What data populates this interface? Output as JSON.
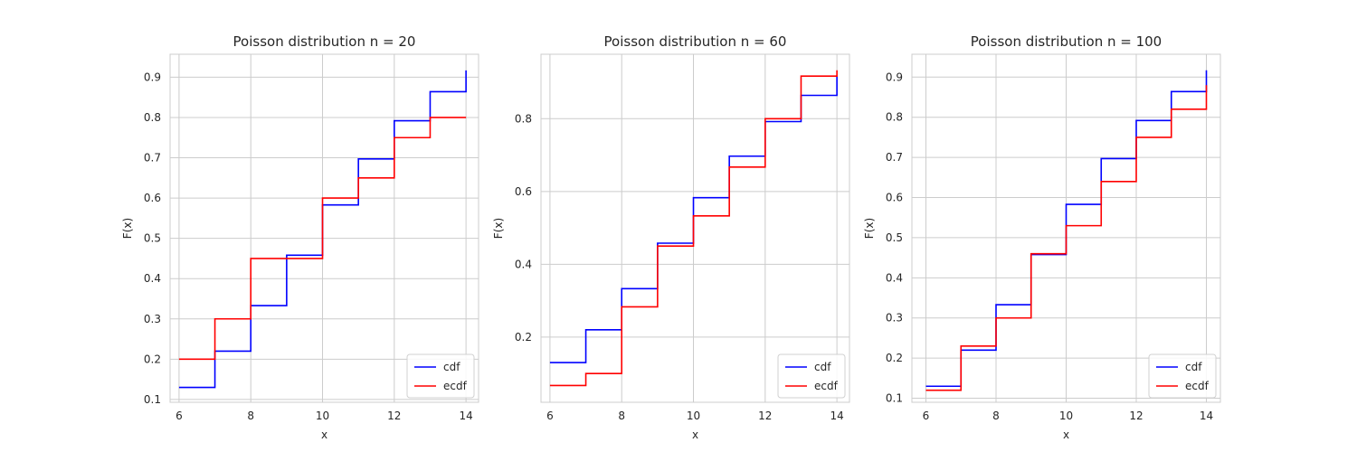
{
  "colors": {
    "cdf": "#0000ff",
    "ecdf": "#ff0000",
    "grid": "#cccccc",
    "frame": "#cccccc"
  },
  "chart_data": [
    {
      "type": "line",
      "step": "post",
      "title": "Poisson distribution n = 20",
      "xlabel": "x",
      "ylabel": "F(x)",
      "xlim": [
        5.75,
        14.35
      ],
      "ylim": [
        0.093,
        0.957
      ],
      "xticks": [
        6,
        8,
        10,
        12,
        14
      ],
      "yticks": [
        0.1,
        0.2,
        0.3,
        0.4,
        0.5,
        0.6,
        0.7,
        0.8,
        0.9
      ],
      "ytick_labels": [
        "0.1",
        "0.2",
        "0.3",
        "0.4",
        "0.5",
        "0.6",
        "0.7",
        "0.8",
        "0.9"
      ],
      "grid": true,
      "legend": "lower-right",
      "series": [
        {
          "name": "cdf",
          "x": [
            6,
            7,
            8,
            9,
            10,
            11,
            12,
            13,
            14
          ],
          "y": [
            0.13,
            0.22,
            0.333,
            0.458,
            0.583,
            0.697,
            0.792,
            0.864,
            0.917
          ]
        },
        {
          "name": "ecdf",
          "x": [
            6,
            7,
            8,
            9,
            10,
            11,
            12,
            13,
            14
          ],
          "y": [
            0.2,
            0.3,
            0.45,
            0.45,
            0.6,
            0.65,
            0.75,
            0.8,
            0.8
          ]
        }
      ]
    },
    {
      "type": "line",
      "step": "post",
      "title": "Poisson distribution n = 60",
      "xlabel": "x",
      "ylabel": "F(x)",
      "xlim": [
        5.75,
        14.35
      ],
      "ylim": [
        0.021,
        0.977
      ],
      "xticks": [
        6,
        8,
        10,
        12,
        14
      ],
      "yticks": [
        0.2,
        0.4,
        0.6,
        0.8
      ],
      "ytick_labels": [
        "0.2",
        "0.4",
        "0.6",
        "0.8"
      ],
      "grid": true,
      "legend": "lower-right",
      "series": [
        {
          "name": "cdf",
          "x": [
            6,
            7,
            8,
            9,
            10,
            11,
            12,
            13,
            14
          ],
          "y": [
            0.13,
            0.22,
            0.333,
            0.458,
            0.583,
            0.697,
            0.792,
            0.864,
            0.917
          ]
        },
        {
          "name": "ecdf",
          "x": [
            6,
            7,
            8,
            9,
            10,
            11,
            12,
            13,
            14
          ],
          "y": [
            0.067,
            0.1,
            0.283,
            0.45,
            0.533,
            0.667,
            0.8,
            0.917,
            0.933
          ]
        }
      ]
    },
    {
      "type": "line",
      "step": "post",
      "title": "Poisson distribution n = 100",
      "xlabel": "x",
      "ylabel": "F(x)",
      "xlim": [
        5.6,
        14.4
      ],
      "ylim": [
        0.09,
        0.957
      ],
      "xticks": [
        6,
        8,
        10,
        12,
        14
      ],
      "yticks": [
        0.1,
        0.2,
        0.3,
        0.4,
        0.5,
        0.6,
        0.7,
        0.8,
        0.9
      ],
      "ytick_labels": [
        "0.1",
        "0.2",
        "0.3",
        "0.4",
        "0.5",
        "0.6",
        "0.7",
        "0.8",
        "0.9"
      ],
      "grid": true,
      "legend": "lower-right",
      "series": [
        {
          "name": "cdf",
          "x": [
            6,
            7,
            8,
            9,
            10,
            11,
            12,
            13,
            14
          ],
          "y": [
            0.13,
            0.22,
            0.333,
            0.458,
            0.583,
            0.697,
            0.792,
            0.864,
            0.917
          ]
        },
        {
          "name": "ecdf",
          "x": [
            6,
            7,
            8,
            9,
            10,
            11,
            12,
            13,
            14
          ],
          "y": [
            0.12,
            0.23,
            0.3,
            0.46,
            0.53,
            0.64,
            0.75,
            0.82,
            0.88
          ]
        }
      ]
    }
  ]
}
